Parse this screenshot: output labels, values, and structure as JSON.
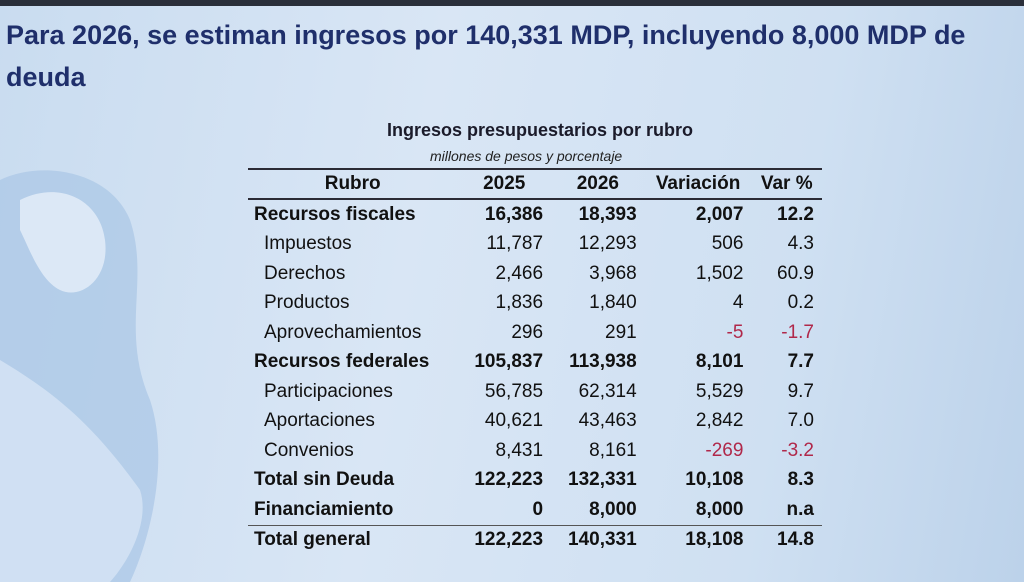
{
  "header": {
    "title": "Para 2026, se estiman ingresos por 140,331 MDP, incluyendo 8,000 MDP de deuda"
  },
  "table": {
    "title": "Ingresos presupuestarios por rubro",
    "subtitle": "millones de pesos y porcentaje",
    "columns": [
      "Rubro",
      "2025",
      "2026",
      "Variación",
      "Var %"
    ],
    "rows": [
      {
        "cells": [
          "Recursos fiscales",
          "16,386",
          "18,393",
          "2,007",
          "12.2"
        ],
        "bold": true,
        "indent": false
      },
      {
        "cells": [
          "Impuestos",
          "11,787",
          "12,293",
          "506",
          "4.3"
        ],
        "bold": false,
        "indent": true
      },
      {
        "cells": [
          "Derechos",
          "2,466",
          "3,968",
          "1,502",
          "60.9"
        ],
        "bold": false,
        "indent": true
      },
      {
        "cells": [
          "Productos",
          "1,836",
          "1,840",
          "4",
          "0.2"
        ],
        "bold": false,
        "indent": true
      },
      {
        "cells": [
          "Aprovechamientos",
          "296",
          "291",
          "-5",
          "-1.7"
        ],
        "bold": false,
        "indent": true
      },
      {
        "cells": [
          "Recursos federales",
          "105,837",
          "113,938",
          "8,101",
          "7.7"
        ],
        "bold": true,
        "indent": false
      },
      {
        "cells": [
          "Participaciones",
          "56,785",
          "62,314",
          "5,529",
          "9.7"
        ],
        "bold": false,
        "indent": true
      },
      {
        "cells": [
          "Aportaciones",
          "40,621",
          "43,463",
          "2,842",
          "7.0"
        ],
        "bold": false,
        "indent": true
      },
      {
        "cells": [
          "Convenios",
          "8,431",
          "8,161",
          "-269",
          "-3.2"
        ],
        "bold": false,
        "indent": true
      },
      {
        "cells": [
          "Total sin Deuda",
          "122,223",
          "132,331",
          "10,108",
          "8.3"
        ],
        "bold": true,
        "indent": false
      },
      {
        "cells": [
          "Financiamiento",
          "0",
          "8,000",
          "8,000",
          "n.a"
        ],
        "bold": true,
        "indent": false
      },
      {
        "cells": [
          "Total general",
          "122,223",
          "140,331",
          "18,108",
          "14.8"
        ],
        "bold": true,
        "indent": false
      }
    ]
  }
}
